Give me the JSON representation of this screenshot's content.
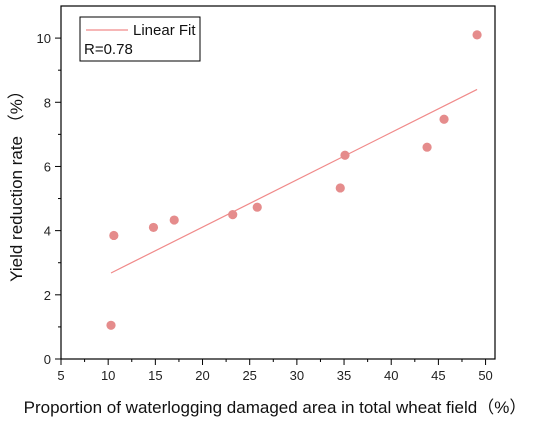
{
  "chart_data": {
    "type": "scatter",
    "xlabel": "Proportion of waterlogging damaged area in total wheat field（%）",
    "ylabel": "Yield reduction rate （%）",
    "xlim": [
      5,
      51
    ],
    "ylim": [
      0,
      11
    ],
    "x_ticks": [
      5,
      10,
      15,
      20,
      25,
      30,
      35,
      40,
      45,
      50
    ],
    "y_ticks": [
      0,
      2,
      4,
      6,
      8,
      10
    ],
    "grid": false,
    "legend_position": "top-left",
    "series": [
      {
        "type": "scatter",
        "points": [
          {
            "x": 10.3,
            "y": 1.05
          },
          {
            "x": 10.6,
            "y": 3.85
          },
          {
            "x": 14.8,
            "y": 4.1
          },
          {
            "x": 17.0,
            "y": 4.33
          },
          {
            "x": 23.2,
            "y": 4.5
          },
          {
            "x": 25.8,
            "y": 4.73
          },
          {
            "x": 34.6,
            "y": 5.33
          },
          {
            "x": 35.1,
            "y": 6.35
          },
          {
            "x": 43.8,
            "y": 6.6
          },
          {
            "x": 45.6,
            "y": 7.47
          },
          {
            "x": 49.1,
            "y": 10.1
          }
        ],
        "color": "#e58c8c"
      },
      {
        "type": "line",
        "name": "Linear Fit",
        "points": [
          {
            "x": 10.3,
            "y": 2.68
          },
          {
            "x": 49.1,
            "y": 8.4
          }
        ],
        "color": "#f08a8a"
      }
    ],
    "annotation": "R=0.78"
  }
}
